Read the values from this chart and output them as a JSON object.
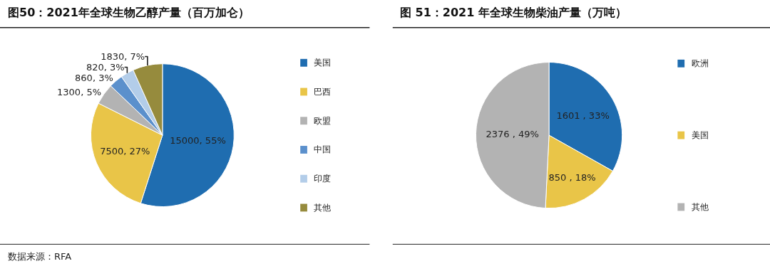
{
  "chart_data": [
    {
      "type": "pie",
      "title": "图50：2021年全球生物乙醇产量（百万加仑）",
      "categories": [
        "美国",
        "巴西",
        "欧盟",
        "中国",
        "印度",
        "其他"
      ],
      "values": [
        15000,
        7500,
        1300,
        860,
        820,
        1830
      ],
      "colors": [
        "#1f6db0",
        "#e9c548",
        "#b3b3b3",
        "#5b90cc",
        "#b3cde9",
        "#968b3d"
      ],
      "value_labels": [
        "15000, 55%",
        "7500, 27%",
        "1300, 5%",
        "860, 3%",
        "820, 3%",
        "1830, 7%"
      ],
      "legend": "right",
      "annotations": [
        "数据来源：RFA"
      ]
    },
    {
      "type": "pie",
      "title": "图 51：2021 年全球生物柴油产量（万吨）",
      "categories": [
        "欧洲",
        "美国",
        "其他"
      ],
      "values": [
        1601,
        850,
        2376
      ],
      "colors": [
        "#1f6db0",
        "#e9c548",
        "#b3b3b3"
      ],
      "value_labels": [
        "1601 , 33%",
        "850 , 18%",
        "2376 , 49%"
      ],
      "legend": "right"
    }
  ]
}
